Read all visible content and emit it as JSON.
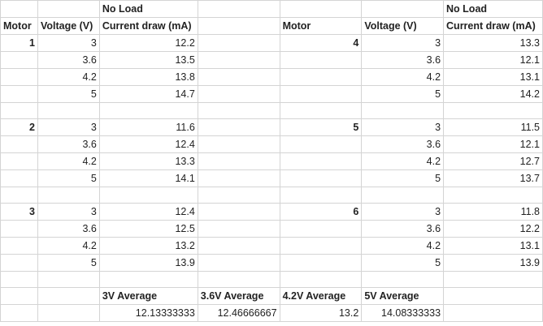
{
  "header": {
    "no_load_left": "No Load",
    "no_load_right": "No Load",
    "motor_left": "Motor",
    "voltage_left": "Voltage (V)",
    "current_left": "Current draw (mA)",
    "motor_right": "Motor",
    "voltage_right": "Voltage (V)",
    "current_right": "Current draw (mA)"
  },
  "groups": [
    {
      "left": {
        "motor": "1",
        "rows": [
          [
            "3",
            "12.2"
          ],
          [
            "3.6",
            "13.5"
          ],
          [
            "4.2",
            "13.8"
          ],
          [
            "5",
            "14.7"
          ]
        ]
      },
      "right": {
        "motor": "4",
        "rows": [
          [
            "3",
            "13.3"
          ],
          [
            "3.6",
            "12.1"
          ],
          [
            "4.2",
            "13.1"
          ],
          [
            "5",
            "14.2"
          ]
        ]
      }
    },
    {
      "left": {
        "motor": "2",
        "rows": [
          [
            "3",
            "11.6"
          ],
          [
            "3.6",
            "12.4"
          ],
          [
            "4.2",
            "13.3"
          ],
          [
            "5",
            "14.1"
          ]
        ]
      },
      "right": {
        "motor": "5",
        "rows": [
          [
            "3",
            "11.5"
          ],
          [
            "3.6",
            "12.1"
          ],
          [
            "4.2",
            "12.7"
          ],
          [
            "5",
            "13.7"
          ]
        ]
      }
    },
    {
      "left": {
        "motor": "3",
        "rows": [
          [
            "3",
            "12.4"
          ],
          [
            "3.6",
            "12.5"
          ],
          [
            "4.2",
            "13.2"
          ],
          [
            "5",
            "13.9"
          ]
        ]
      },
      "right": {
        "motor": "6",
        "rows": [
          [
            "3",
            "11.8"
          ],
          [
            "3.6",
            "12.2"
          ],
          [
            "4.2",
            "13.1"
          ],
          [
            "5",
            "13.9"
          ]
        ]
      }
    }
  ],
  "averages": {
    "labels": [
      "3V Average",
      "3.6V Average",
      "4.2V Average",
      "5V Average"
    ],
    "values": [
      "12.13333333",
      "12.46666667",
      "13.2",
      "14.08333333"
    ]
  }
}
